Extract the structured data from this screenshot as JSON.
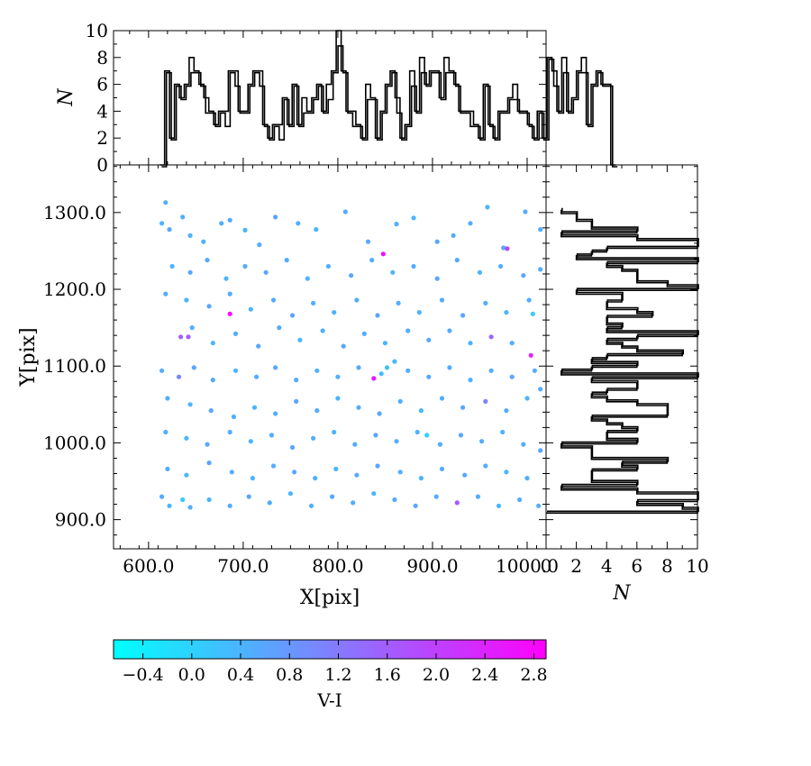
{
  "chart_data": [
    {
      "type": "scatter",
      "name": "main",
      "xlabel": "X[pix]",
      "ylabel": "Y[pix]",
      "xlim": [
        563,
        1020
      ],
      "ylim": [
        862,
        1362
      ],
      "xticks": [
        600,
        700,
        800,
        900,
        1000
      ],
      "xtick_labels": [
        "600.0",
        "700.0",
        "800.0",
        "900.0",
        "1000.0"
      ],
      "yticks": [
        900,
        1000,
        1100,
        1200,
        1300
      ],
      "ytick_labels": [
        "900.0",
        "1000.0",
        "1100.0",
        "1200.0",
        "1300.0"
      ],
      "color_field": "V-I",
      "colormap": [
        "#00ffff",
        "#ff00ff"
      ],
      "points": [
        [
          618,
          1313,
          0.5
        ],
        [
          614,
          1286,
          0.4
        ],
        [
          622,
          1278,
          0.6
        ],
        [
          636,
          1294,
          0.5
        ],
        [
          644,
          1270,
          0.4
        ],
        [
          658,
          1262,
          0.5
        ],
        [
          677,
          1286,
          0.5
        ],
        [
          686,
          1290,
          0.6
        ],
        [
          702,
          1277,
          0.4
        ],
        [
          717,
          1258,
          0.5
        ],
        [
          734,
          1294,
          0.6
        ],
        [
          758,
          1286,
          0.5
        ],
        [
          777,
          1278,
          0.4
        ],
        [
          808,
          1301,
          0.5
        ],
        [
          832,
          1262,
          0.6
        ],
        [
          848,
          1246,
          2.7
        ],
        [
          862,
          1285,
          0.5
        ],
        [
          880,
          1293,
          0.4
        ],
        [
          905,
          1262,
          0.6
        ],
        [
          922,
          1270,
          0.5
        ],
        [
          940,
          1286,
          0.5
        ],
        [
          958,
          1307,
          0.4
        ],
        [
          975,
          1254,
          0.6
        ],
        [
          979,
          1253,
          1.9
        ],
        [
          998,
          1301,
          0.5
        ],
        [
          1014,
          1278,
          0.5
        ],
        [
          625,
          1230,
          0.4
        ],
        [
          644,
          1222,
          0.6
        ],
        [
          662,
          1238,
          0.5
        ],
        [
          682,
          1214,
          0.4
        ],
        [
          702,
          1230,
          0.5
        ],
        [
          724,
          1222,
          0.6
        ],
        [
          746,
          1238,
          0.5
        ],
        [
          768,
          1214,
          0.4
        ],
        [
          790,
          1230,
          0.5
        ],
        [
          814,
          1218,
          0.6
        ],
        [
          836,
          1238,
          0.5
        ],
        [
          858,
          1222,
          0.4
        ],
        [
          880,
          1230,
          0.5
        ],
        [
          905,
          1214,
          0.6
        ],
        [
          926,
          1238,
          0.5
        ],
        [
          950,
          1222,
          0.4
        ],
        [
          972,
          1230,
          0.5
        ],
        [
          996,
          1218,
          0.6
        ],
        [
          1014,
          1226,
          0.5
        ],
        [
          618,
          1194,
          0.5
        ],
        [
          640,
          1186,
          0.4
        ],
        [
          664,
          1178,
          0.6
        ],
        [
          686,
          1194,
          0.5
        ],
        [
          708,
          1174,
          0.4
        ],
        [
          732,
          1186,
          0.5
        ],
        [
          752,
          1166,
          0.6
        ],
        [
          774,
          1182,
          0.5
        ],
        [
          796,
          1170,
          0.4
        ],
        [
          820,
          1186,
          0.5
        ],
        [
          842,
          1166,
          0.6
        ],
        [
          864,
          1182,
          0.5
        ],
        [
          886,
          1170,
          0.4
        ],
        [
          910,
          1186,
          0.5
        ],
        [
          932,
          1166,
          0.6
        ],
        [
          956,
          1182,
          0.5
        ],
        [
          978,
          1170,
          0.4
        ],
        [
          1002,
          1186,
          0.5
        ],
        [
          1006,
          1168,
          0.1
        ],
        [
          686,
          1168,
          2.8
        ],
        [
          646,
          1150,
          0.5
        ],
        [
          668,
          1130,
          0.4
        ],
        [
          692,
          1142,
          0.5
        ],
        [
          716,
          1126,
          0.6
        ],
        [
          738,
          1150,
          0.5
        ],
        [
          760,
          1134,
          0.4
        ],
        [
          784,
          1146,
          0.5
        ],
        [
          806,
          1126,
          0.6
        ],
        [
          828,
          1142,
          0.5
        ],
        [
          850,
          1130,
          0.4
        ],
        [
          874,
          1146,
          0.5
        ],
        [
          896,
          1134,
          0.6
        ],
        [
          918,
          1146,
          0.5
        ],
        [
          940,
          1130,
          0.4
        ],
        [
          962,
          1138,
          1.5
        ],
        [
          984,
          1130,
          0.5
        ],
        [
          1004,
          1114,
          2.4
        ],
        [
          634,
          1138,
          1.6
        ],
        [
          642,
          1138,
          1.6
        ],
        [
          614,
          1094,
          0.5
        ],
        [
          632,
          1086,
          1.1
        ],
        [
          648,
          1098,
          0.6
        ],
        [
          668,
          1082,
          0.5
        ],
        [
          692,
          1094,
          0.4
        ],
        [
          714,
          1086,
          0.5
        ],
        [
          734,
          1098,
          0.6
        ],
        [
          756,
          1082,
          0.5
        ],
        [
          778,
          1094,
          0.4
        ],
        [
          800,
          1086,
          0.5
        ],
        [
          822,
          1098,
          0.6
        ],
        [
          838,
          1084,
          2.6
        ],
        [
          846,
          1090,
          0.3
        ],
        [
          852,
          1098,
          0.2
        ],
        [
          860,
          1106,
          0.4
        ],
        [
          874,
          1094,
          0.5
        ],
        [
          896,
          1086,
          0.6
        ],
        [
          918,
          1098,
          0.5
        ],
        [
          940,
          1082,
          0.4
        ],
        [
          962,
          1094,
          0.5
        ],
        [
          984,
          1086,
          0.6
        ],
        [
          1008,
          1094,
          0.5
        ],
        [
          620,
          1058,
          0.5
        ],
        [
          644,
          1050,
          0.4
        ],
        [
          666,
          1042,
          0.6
        ],
        [
          690,
          1034,
          0.5
        ],
        [
          712,
          1046,
          0.4
        ],
        [
          734,
          1038,
          0.5
        ],
        [
          756,
          1054,
          0.6
        ],
        [
          778,
          1042,
          0.5
        ],
        [
          800,
          1058,
          0.4
        ],
        [
          822,
          1046,
          0.5
        ],
        [
          844,
          1038,
          0.6
        ],
        [
          866,
          1054,
          0.5
        ],
        [
          888,
          1042,
          0.4
        ],
        [
          910,
          1058,
          0.5
        ],
        [
          932,
          1046,
          0.6
        ],
        [
          956,
          1054,
          1.1
        ],
        [
          978,
          1042,
          0.5
        ],
        [
          1000,
          1058,
          0.4
        ],
        [
          1014,
          1070,
          0.5
        ],
        [
          618,
          1014,
          0.5
        ],
        [
          640,
          1006,
          0.4
        ],
        [
          662,
          998,
          0.6
        ],
        [
          686,
          1014,
          0.5
        ],
        [
          708,
          1002,
          0.4
        ],
        [
          730,
          1010,
          0.5
        ],
        [
          752,
          994,
          0.6
        ],
        [
          774,
          1006,
          0.5
        ],
        [
          796,
          1014,
          0.4
        ],
        [
          818,
          998,
          0.5
        ],
        [
          840,
          1010,
          0.6
        ],
        [
          862,
          1002,
          0.5
        ],
        [
          884,
          1014,
          0.4
        ],
        [
          894,
          1010,
          0.0
        ],
        [
          908,
          998,
          0.5
        ],
        [
          930,
          1010,
          0.6
        ],
        [
          952,
          1002,
          0.5
        ],
        [
          974,
          1014,
          0.4
        ],
        [
          996,
          998,
          0.5
        ],
        [
          1014,
          990,
          0.6
        ],
        [
          620,
          966,
          0.5
        ],
        [
          640,
          958,
          0.4
        ],
        [
          664,
          974,
          0.6
        ],
        [
          688,
          962,
          0.5
        ],
        [
          710,
          954,
          0.4
        ],
        [
          732,
          970,
          0.5
        ],
        [
          754,
          962,
          0.6
        ],
        [
          776,
          954,
          0.5
        ],
        [
          798,
          966,
          0.4
        ],
        [
          820,
          958,
          0.5
        ],
        [
          842,
          970,
          0.6
        ],
        [
          866,
          962,
          0.5
        ],
        [
          888,
          954,
          0.4
        ],
        [
          910,
          966,
          0.5
        ],
        [
          934,
          958,
          0.6
        ],
        [
          956,
          970,
          0.5
        ],
        [
          978,
          962,
          0.4
        ],
        [
          1000,
          954,
          0.5
        ],
        [
          614,
          930,
          0.5
        ],
        [
          622,
          918,
          0.4
        ],
        [
          636,
          926,
          0.1
        ],
        [
          644,
          916,
          0.5
        ],
        [
          664,
          926,
          0.4
        ],
        [
          686,
          918,
          0.5
        ],
        [
          706,
          930,
          0.6
        ],
        [
          728,
          922,
          0.5
        ],
        [
          750,
          934,
          0.4
        ],
        [
          772,
          918,
          0.5
        ],
        [
          794,
          930,
          0.6
        ],
        [
          816,
          922,
          0.5
        ],
        [
          838,
          934,
          0.4
        ],
        [
          860,
          926,
          0.5
        ],
        [
          882,
          918,
          0.6
        ],
        [
          904,
          930,
          0.5
        ],
        [
          926,
          922,
          1.7
        ],
        [
          948,
          930,
          0.5
        ],
        [
          970,
          918,
          0.4
        ],
        [
          992,
          926,
          0.5
        ],
        [
          1012,
          918,
          0.5
        ]
      ]
    },
    {
      "type": "histogram",
      "name": "top",
      "ylabel": "N",
      "ylim": [
        0,
        10
      ],
      "ytick_labels": [
        "0",
        "2",
        "4",
        "6",
        "8",
        "10"
      ],
      "bin_start": 611.8,
      "bin_width": 5.18,
      "counts": [
        0,
        7,
        2,
        6,
        5,
        6,
        8,
        7,
        6,
        5,
        4,
        3,
        4,
        4,
        7,
        7,
        4,
        4,
        6,
        7,
        7,
        3,
        2,
        3,
        3,
        5,
        3,
        6,
        3,
        5,
        4,
        5,
        6,
        4,
        6,
        7,
        10,
        7,
        4,
        4,
        3,
        2,
        6,
        5,
        2,
        4,
        6,
        7,
        5,
        2,
        3,
        7,
        4,
        8,
        6,
        7,
        7,
        5,
        8,
        7,
        6,
        4,
        4,
        4,
        3,
        2,
        6,
        3,
        2,
        4,
        4,
        5,
        6,
        4,
        4,
        3,
        2,
        4,
        2,
        8,
        7,
        4,
        8,
        4,
        5,
        7,
        8,
        3,
        6,
        7,
        6,
        6,
        0
      ],
      "overlay_counts": [
        0,
        7,
        2,
        6,
        5,
        6,
        7,
        7,
        6,
        4,
        4,
        3,
        4,
        3,
        7,
        6,
        4,
        4,
        6,
        7,
        6,
        3,
        2,
        3,
        2,
        5,
        3,
        6,
        3,
        4,
        4,
        5,
        6,
        4,
        5,
        7,
        9,
        7,
        4,
        3,
        3,
        2,
        5,
        5,
        2,
        4,
        6,
        7,
        4,
        2,
        3,
        6,
        4,
        7,
        6,
        7,
        7,
        5,
        7,
        7,
        6,
        4,
        4,
        3,
        3,
        2,
        6,
        3,
        2,
        4,
        4,
        5,
        5,
        4,
        4,
        3,
        2,
        4,
        2,
        8,
        6,
        4,
        7,
        4,
        5,
        7,
        7,
        3,
        6,
        7,
        6,
        6,
        0
      ]
    },
    {
      "type": "histogram",
      "name": "right",
      "orientation": "horizontal",
      "xlabel": "N",
      "xlim": [
        0,
        10
      ],
      "xtick_labels": [
        "0",
        "2",
        "4",
        "6",
        "8",
        "10"
      ],
      "bin_start": 908.6,
      "bin_width": 5.0,
      "counts": [
        10,
        9,
        6,
        10,
        10,
        6,
        1,
        6,
        3,
        3,
        3,
        6,
        5,
        8,
        3,
        3,
        3,
        1,
        6,
        4,
        4,
        6,
        5,
        4,
        3,
        8,
        8,
        8,
        6,
        4,
        3,
        4,
        6,
        6,
        3,
        10,
        1,
        3,
        6,
        3,
        4,
        9,
        6,
        5,
        4,
        6,
        10,
        4,
        5,
        4,
        4,
        7,
        6,
        4,
        4,
        5,
        5,
        2,
        10,
        8,
        6,
        6,
        6,
        5,
        4,
        10,
        2,
        3,
        4,
        10,
        10,
        6,
        1,
        6,
        3,
        3,
        2,
        2,
        1
      ],
      "overlay_counts": [
        10,
        9,
        6,
        10,
        10,
        6,
        1,
        6,
        3,
        3,
        3,
        6,
        5,
        8,
        3,
        3,
        3,
        1,
        6,
        4,
        4,
        6,
        5,
        4,
        3,
        8,
        8,
        8,
        6,
        4,
        3,
        4,
        6,
        6,
        3,
        10,
        1,
        3,
        6,
        3,
        4,
        9,
        6,
        5,
        4,
        6,
        10,
        4,
        5,
        4,
        4,
        7,
        6,
        4,
        4,
        5,
        5,
        2,
        10,
        8,
        6,
        6,
        6,
        5,
        4,
        10,
        2,
        3,
        4,
        10,
        10,
        6,
        1,
        6,
        3,
        3,
        2,
        2,
        1
      ]
    },
    {
      "type": "colorbar",
      "name": "colorbar",
      "label": "V-I",
      "lim": [
        -0.64,
        2.9
      ],
      "tick_labels": [
        "−0.4",
        "0.0",
        "0.4",
        "0.8",
        "1.2",
        "1.6",
        "2.0",
        "2.4",
        "2.8"
      ],
      "colors": [
        "#00ffff",
        "#ff00ff"
      ]
    }
  ]
}
